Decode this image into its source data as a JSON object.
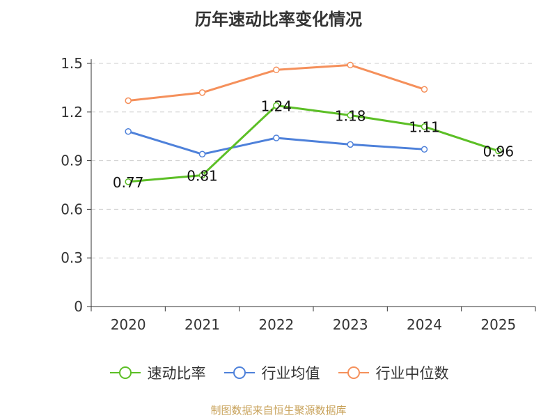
{
  "chart_data": {
    "type": "line",
    "title": "历年速动比率变化情况",
    "categories": [
      "2020",
      "2021",
      "2022",
      "2023",
      "2024",
      "2025"
    ],
    "ylim": [
      0,
      1.5
    ],
    "yticks": [
      "0",
      "0.3",
      "0.6",
      "0.9",
      "1.2",
      "1.5"
    ],
    "ytick_values": [
      0,
      0.3,
      0.6,
      0.9,
      1.2,
      1.5
    ],
    "series": [
      {
        "name": "速动比率",
        "color": "#5cbf26",
        "values": [
          0.77,
          0.81,
          1.24,
          1.18,
          1.11,
          0.96
        ],
        "labels": [
          "0.77",
          "0.81",
          "1.24",
          "1.18",
          "1.11",
          "0.96"
        ]
      },
      {
        "name": "行业均值",
        "color": "#4e81da",
        "values": [
          1.08,
          0.94,
          1.04,
          1.0,
          0.97,
          null
        ]
      },
      {
        "name": "行业中位数",
        "color": "#f5905b",
        "values": [
          1.27,
          1.32,
          1.46,
          1.49,
          1.34,
          null
        ]
      }
    ],
    "legend_position": "bottom",
    "grid": true
  },
  "source": "制图数据来自恒生聚源数据库"
}
